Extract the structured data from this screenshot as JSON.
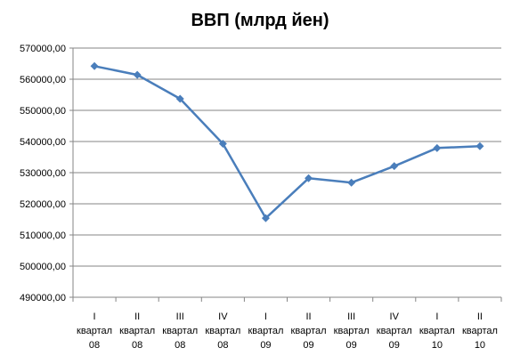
{
  "chart_data": {
    "type": "line",
    "title": "ВВП (млрд йен)",
    "xlabel": "",
    "ylabel": "",
    "ylim": [
      490000,
      570000
    ],
    "ytick_step": 10000,
    "ytick_labels": [
      "490000,00",
      "500000,00",
      "510000,00",
      "520000,00",
      "530000,00",
      "540000,00",
      "550000,00",
      "560000,00",
      "570000,00"
    ],
    "categories": [
      {
        "quarter": "I",
        "word": "квартал",
        "year": "08"
      },
      {
        "quarter": "II",
        "word": "квартал",
        "year": "08"
      },
      {
        "quarter": "III",
        "word": "квартал",
        "year": "08"
      },
      {
        "quarter": "IV",
        "word": "квартал",
        "year": "08"
      },
      {
        "quarter": "I",
        "word": "квартал",
        "year": "09"
      },
      {
        "quarter": "II",
        "word": "квартал",
        "year": "09"
      },
      {
        "quarter": "III",
        "word": "квартал",
        "year": "09"
      },
      {
        "quarter": "IV",
        "word": "квартал",
        "year": "09"
      },
      {
        "quarter": "I",
        "word": "квартал",
        "year": "10"
      },
      {
        "quarter": "II",
        "word": "квартал",
        "year": "10"
      }
    ],
    "series": [
      {
        "values": [
          564200,
          561400,
          553700,
          539300,
          515400,
          528200,
          526800,
          532100,
          537900,
          538500
        ]
      }
    ],
    "grid": true,
    "legend": "none",
    "colors": {
      "line": "#4a7ebb",
      "marker": "#4a7ebb"
    }
  }
}
